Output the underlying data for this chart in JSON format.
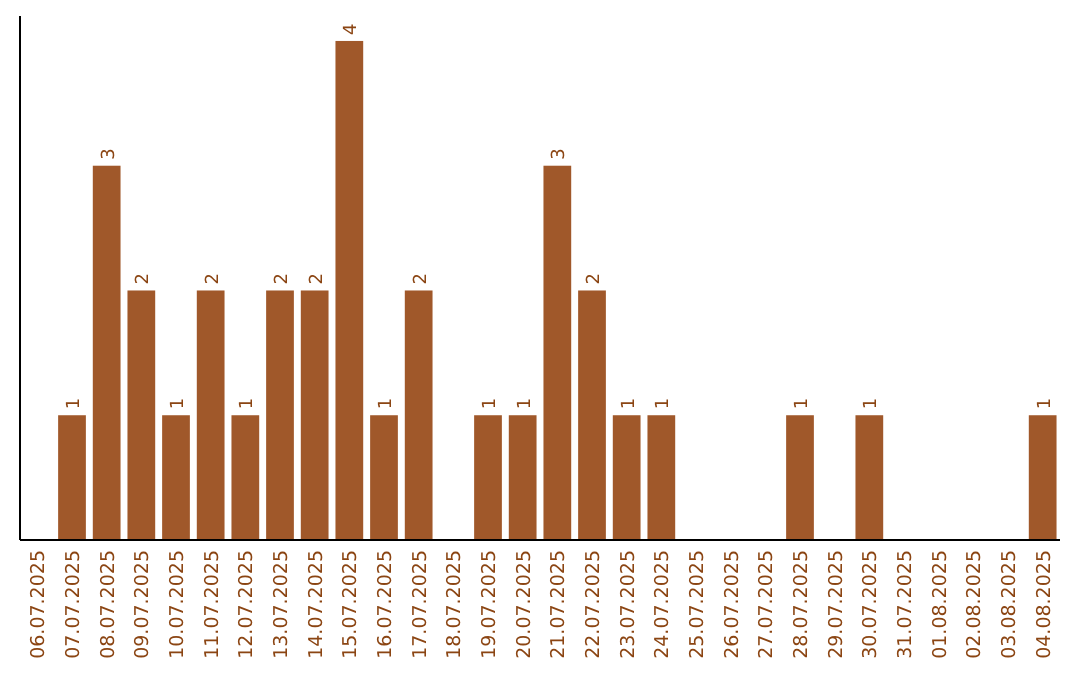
{
  "chart_data": {
    "type": "bar",
    "categories": [
      "06.07.2025",
      "07.07.2025",
      "08.07.2025",
      "09.07.2025",
      "10.07.2025",
      "11.07.2025",
      "12.07.2025",
      "13.07.2025",
      "14.07.2025",
      "15.07.2025",
      "16.07.2025",
      "17.07.2025",
      "18.07.2025",
      "19.07.2025",
      "20.07.2025",
      "21.07.2025",
      "22.07.2025",
      "23.07.2025",
      "24.07.2025",
      "25.07.2025",
      "26.07.2025",
      "27.07.2025",
      "28.07.2025",
      "29.07.2025",
      "30.07.2025",
      "31.07.2025",
      "01.08.2025",
      "02.08.2025",
      "03.08.2025",
      "04.08.2025"
    ],
    "values": [
      0,
      1,
      3,
      2,
      1,
      2,
      1,
      2,
      2,
      4,
      1,
      2,
      0,
      1,
      1,
      3,
      2,
      1,
      1,
      0,
      0,
      0,
      1,
      0,
      1,
      0,
      0,
      0,
      0,
      1
    ],
    "value_labels": [
      null,
      "1",
      "3",
      "2",
      "1",
      "2",
      "1",
      "2",
      "2",
      "4",
      "1",
      "2",
      null,
      "1",
      "1",
      "3",
      "2",
      "1",
      "1",
      null,
      null,
      null,
      "1",
      null,
      "1",
      null,
      null,
      null,
      null,
      "1"
    ],
    "color": "#a0582a",
    "ylim": [
      0,
      4.2
    ],
    "tick_labels": "x"
  }
}
